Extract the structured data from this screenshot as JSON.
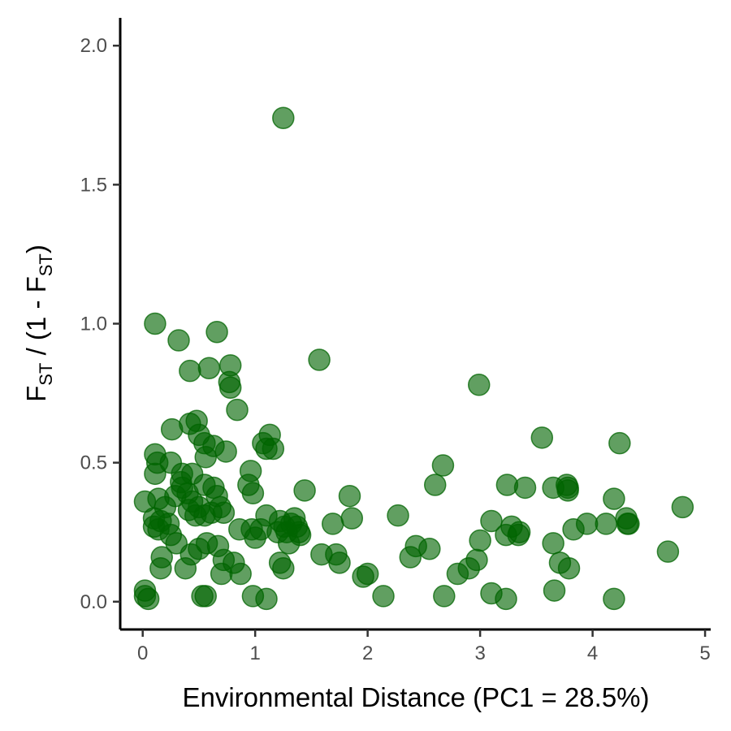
{
  "chart_data": {
    "type": "scatter",
    "xlabel": "Environmental Distance (PC1 = 28.5%)",
    "ylabel": {
      "main": "F",
      "sub": "ST",
      "middle": " / (1 - F",
      "sub2": "ST",
      "end": ")"
    },
    "xlim": [
      -0.2,
      5.05
    ],
    "ylim": [
      -0.1,
      2.1
    ],
    "x_ticks": [
      0,
      1,
      2,
      3,
      4,
      5
    ],
    "x_tick_labels": [
      "0",
      "1",
      "2",
      "3",
      "4",
      "5"
    ],
    "y_ticks": [
      0.0,
      0.5,
      1.0,
      1.5,
      2.0
    ],
    "y_tick_labels": [
      "0.0",
      "0.5",
      "1.0",
      "1.5",
      "2.0"
    ],
    "grid": false,
    "point_color": "#006400",
    "point_opacity": 0.62,
    "points": [
      [
        1.25,
        1.74
      ],
      [
        0.11,
        1.0
      ],
      [
        0.32,
        0.94
      ],
      [
        0.66,
        0.97
      ],
      [
        0.78,
        0.85
      ],
      [
        0.59,
        0.84
      ],
      [
        0.42,
        0.83
      ],
      [
        0.77,
        0.79
      ],
      [
        0.78,
        0.77
      ],
      [
        0.84,
        0.69
      ],
      [
        1.57,
        0.87
      ],
      [
        2.99,
        0.78
      ],
      [
        0.26,
        0.62
      ],
      [
        0.42,
        0.64
      ],
      [
        0.48,
        0.65
      ],
      [
        0.5,
        0.6
      ],
      [
        0.55,
        0.57
      ],
      [
        0.63,
        0.56
      ],
      [
        0.74,
        0.54
      ],
      [
        0.56,
        0.52
      ],
      [
        1.13,
        0.6
      ],
      [
        1.07,
        0.57
      ],
      [
        1.1,
        0.55
      ],
      [
        1.16,
        0.55
      ],
      [
        0.11,
        0.53
      ],
      [
        0.13,
        0.5
      ],
      [
        0.11,
        0.46
      ],
      [
        0.25,
        0.5
      ],
      [
        0.35,
        0.46
      ],
      [
        0.44,
        0.46
      ],
      [
        0.34,
        0.43
      ],
      [
        0.35,
        0.41
      ],
      [
        0.4,
        0.39
      ],
      [
        0.55,
        0.42
      ],
      [
        0.63,
        0.41
      ],
      [
        0.66,
        0.38
      ],
      [
        0.69,
        0.34
      ],
      [
        0.72,
        0.32
      ],
      [
        0.5,
        0.34
      ],
      [
        0.41,
        0.33
      ],
      [
        0.47,
        0.31
      ],
      [
        0.55,
        0.31
      ],
      [
        0.61,
        0.32
      ],
      [
        0.29,
        0.38
      ],
      [
        0.2,
        0.34
      ],
      [
        0.14,
        0.37
      ],
      [
        0.1,
        0.3
      ],
      [
        0.1,
        0.27
      ],
      [
        0.16,
        0.29
      ],
      [
        0.23,
        0.28
      ],
      [
        0.25,
        0.24
      ],
      [
        0.3,
        0.21
      ],
      [
        0.02,
        0.36
      ],
      [
        0.96,
        0.47
      ],
      [
        0.94,
        0.42
      ],
      [
        0.98,
        0.39
      ],
      [
        0.86,
        0.26
      ],
      [
        0.97,
        0.26
      ],
      [
        1.0,
        0.23
      ],
      [
        1.05,
        0.26
      ],
      [
        1.1,
        0.31
      ],
      [
        1.22,
        0.29
      ],
      [
        1.26,
        0.27
      ],
      [
        1.28,
        0.25
      ],
      [
        1.32,
        0.28
      ],
      [
        1.35,
        0.3
      ],
      [
        1.37,
        0.27
      ],
      [
        1.39,
        0.25
      ],
      [
        1.4,
        0.24
      ],
      [
        1.2,
        0.25
      ],
      [
        1.3,
        0.21
      ],
      [
        1.22,
        0.14
      ],
      [
        1.25,
        0.12
      ],
      [
        1.44,
        0.4
      ],
      [
        1.84,
        0.38
      ],
      [
        1.69,
        0.28
      ],
      [
        1.86,
        0.3
      ],
      [
        2.27,
        0.31
      ],
      [
        2.6,
        0.42
      ],
      [
        2.67,
        0.49
      ],
      [
        2.43,
        0.2
      ],
      [
        2.55,
        0.19
      ],
      [
        2.38,
        0.16
      ],
      [
        1.59,
        0.17
      ],
      [
        1.72,
        0.17
      ],
      [
        1.75,
        0.14
      ],
      [
        1.96,
        0.09
      ],
      [
        2.0,
        0.1
      ],
      [
        2.14,
        0.02
      ],
      [
        2.8,
        0.1
      ],
      [
        2.9,
        0.12
      ],
      [
        2.97,
        0.15
      ],
      [
        2.68,
        0.02
      ],
      [
        3.0,
        0.22
      ],
      [
        3.1,
        0.29
      ],
      [
        3.23,
        0.24
      ],
      [
        3.28,
        0.27
      ],
      [
        3.35,
        0.25
      ],
      [
        3.34,
        0.24
      ],
      [
        3.24,
        0.42
      ],
      [
        3.4,
        0.41
      ],
      [
        3.55,
        0.59
      ],
      [
        3.65,
        0.41
      ],
      [
        3.77,
        0.42
      ],
      [
        3.78,
        0.41
      ],
      [
        3.78,
        0.4
      ],
      [
        3.65,
        0.21
      ],
      [
        3.71,
        0.14
      ],
      [
        3.79,
        0.12
      ],
      [
        3.83,
        0.26
      ],
      [
        3.95,
        0.28
      ],
      [
        4.12,
        0.28
      ],
      [
        4.19,
        0.37
      ],
      [
        4.24,
        0.57
      ],
      [
        4.3,
        0.3
      ],
      [
        4.31,
        0.28
      ],
      [
        4.32,
        0.28
      ],
      [
        4.67,
        0.18
      ],
      [
        4.8,
        0.34
      ],
      [
        3.66,
        0.04
      ],
      [
        3.1,
        0.03
      ],
      [
        3.23,
        0.01
      ],
      [
        4.19,
        0.01
      ],
      [
        0.02,
        0.04
      ],
      [
        0.02,
        0.02
      ],
      [
        0.05,
        0.01
      ],
      [
        0.53,
        0.02
      ],
      [
        0.56,
        0.02
      ],
      [
        0.98,
        0.02
      ],
      [
        1.1,
        0.01
      ],
      [
        0.17,
        0.16
      ],
      [
        0.16,
        0.12
      ],
      [
        0.38,
        0.12
      ],
      [
        0.43,
        0.17
      ],
      [
        0.5,
        0.19
      ],
      [
        0.57,
        0.21
      ],
      [
        0.67,
        0.2
      ],
      [
        0.72,
        0.15
      ],
      [
        0.7,
        0.1
      ],
      [
        0.81,
        0.14
      ],
      [
        0.87,
        0.1
      ],
      [
        0.14,
        0.26
      ],
      [
        0.44,
        0.36
      ]
    ]
  }
}
